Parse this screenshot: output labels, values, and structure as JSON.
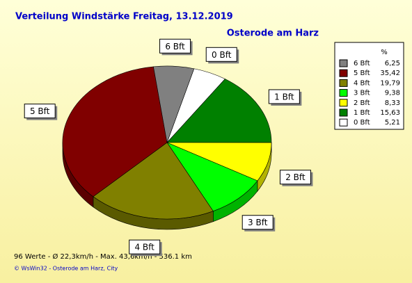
{
  "chart_data": {
    "type": "pie",
    "title": "Verteilung Windstärke  Freitag, 13.12.2019",
    "subtitle": "Osterode am Harz",
    "categories": [
      "0 Bft",
      "1 Bft",
      "2 Bft",
      "3 Bft",
      "4 Bft",
      "5 Bft",
      "6 Bft"
    ],
    "values": [
      5.21,
      15.63,
      8.33,
      9.38,
      19.79,
      35.42,
      6.25
    ],
    "value_labels": [
      "5,21",
      "15,63",
      "8,33",
      "9,38",
      "19,79",
      "35,42",
      "6,25"
    ],
    "colors": [
      "#ffffff",
      "#008000",
      "#ffff00",
      "#00ff00",
      "#808000",
      "#800000",
      "#808080"
    ],
    "legend_title": "%",
    "legend": "right",
    "footer": "96 Werte   -   Ø 22,3km/h  -  Max. 43,6km/h   -   536.1 km",
    "credit": "© WsWin32  -  Osterode am Harz, City"
  }
}
